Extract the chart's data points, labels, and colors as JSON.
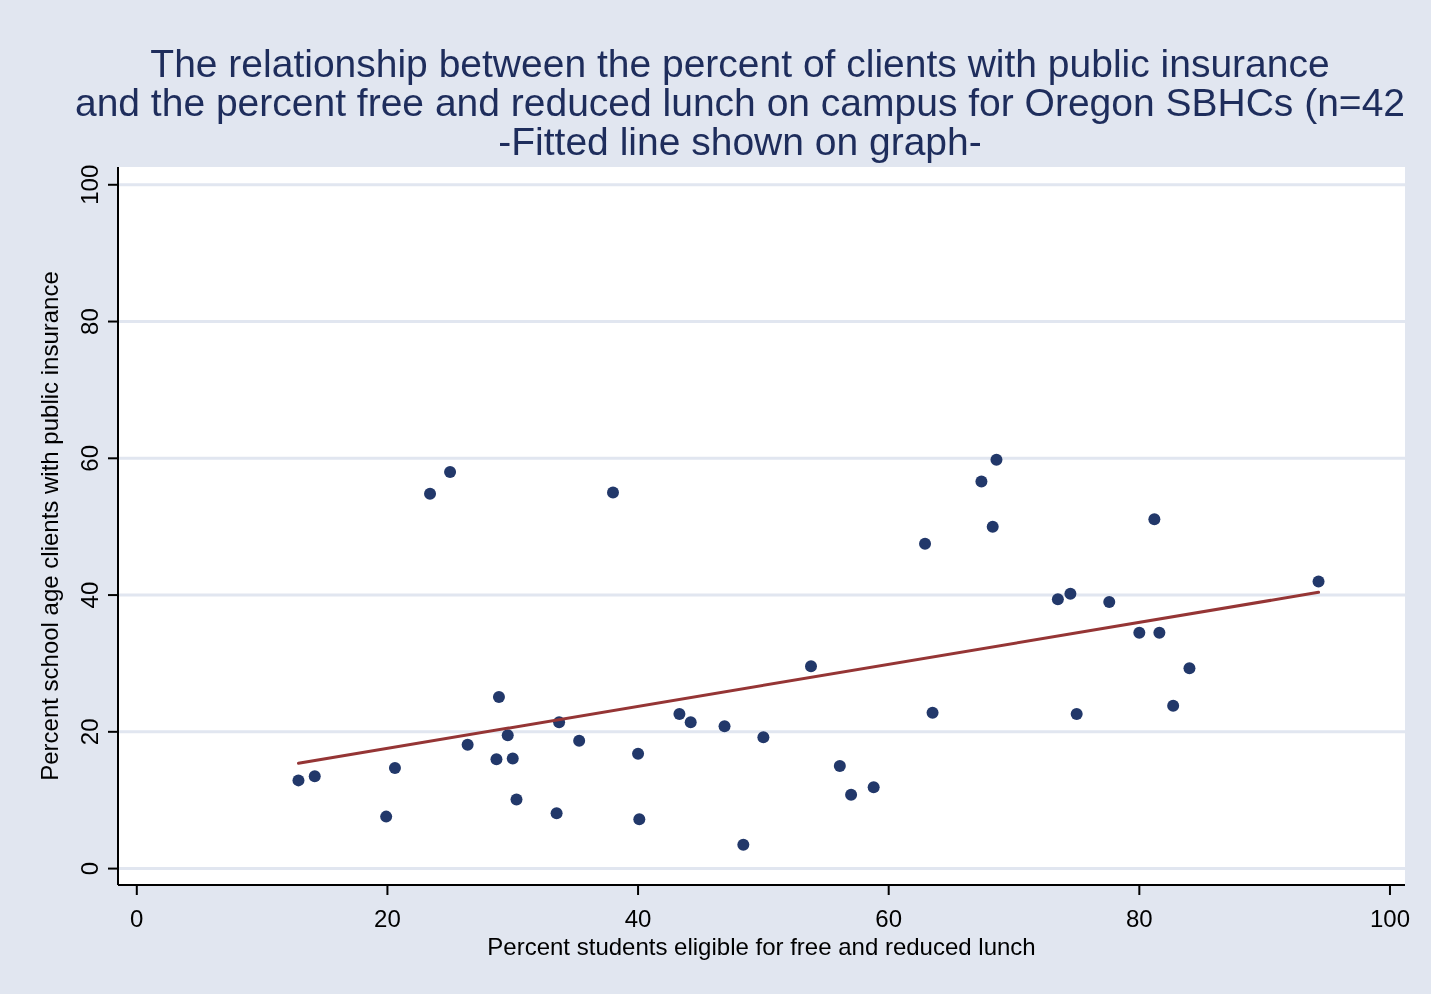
{
  "chart_data": {
    "type": "scatter",
    "title": "The relationship between the percent of clients with public insurance\nand the percent free and reduced lunch on campus for Oregon SBHCs (n=42",
    "subtitle": "-Fitted line shown on graph-",
    "xlabel": "Percent students eligible for free and reduced lunch",
    "ylabel": "Percent school age clients with public insurance",
    "xlim": [
      -1.5,
      101.2
    ],
    "ylim": [
      -2.4,
      102.6
    ],
    "xticks": [
      0,
      20,
      40,
      60,
      80,
      100
    ],
    "yticks": [
      0,
      20,
      40,
      60,
      80,
      100
    ],
    "grid": "y",
    "series": [
      {
        "marker": "circle",
        "color": "#22386a",
        "x": [
          12.9,
          14.2,
          19.9,
          20.6,
          23.4,
          25.0,
          26.4,
          28.9,
          28.7,
          29.6,
          30.0,
          30.3,
          38.0,
          33.7,
          33.5,
          35.3,
          40.0,
          40.1,
          43.3,
          44.2,
          46.9,
          48.4,
          50.0,
          53.8,
          56.1,
          57.0,
          58.8,
          62.9,
          63.5,
          67.4,
          68.6,
          68.3,
          73.5,
          74.5,
          77.6,
          75.0,
          81.2,
          80.0,
          81.6,
          84.0,
          82.7,
          94.3
        ],
        "values": [
          12.9,
          13.5,
          7.6,
          14.7,
          54.8,
          58.0,
          18.1,
          25.1,
          16.0,
          19.5,
          16.1,
          10.1,
          55.0,
          21.4,
          8.1,
          18.7,
          16.8,
          7.2,
          22.6,
          21.4,
          20.8,
          3.5,
          19.2,
          29.6,
          15.0,
          10.8,
          11.9,
          47.5,
          22.8,
          56.6,
          59.8,
          50.0,
          39.4,
          40.2,
          39.0,
          22.6,
          51.1,
          34.5,
          34.5,
          29.3,
          23.8,
          42.0
        ]
      },
      {
        "type": "line",
        "color": "#953535",
        "x": [
          12.9,
          94.3
        ],
        "values": [
          15.4,
          40.4
        ]
      }
    ]
  }
}
